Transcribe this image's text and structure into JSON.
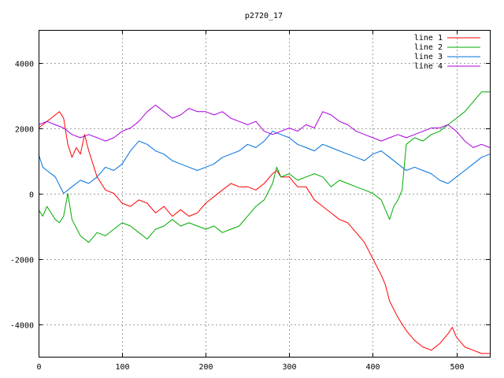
{
  "chart_data": {
    "type": "line",
    "title": "p2720_17",
    "xlabel": "",
    "ylabel": "",
    "xlim": [
      0,
      540
    ],
    "ylim": [
      -5000,
      5000
    ],
    "x_ticks": [
      0,
      100,
      200,
      300,
      400,
      500
    ],
    "y_ticks": [
      -4000,
      -2000,
      0,
      2000,
      4000
    ],
    "grid": true,
    "legend_position": "top-right",
    "series": [
      {
        "name": "line 1",
        "color": "#ff0000",
        "points": [
          [
            0,
            2000
          ],
          [
            5,
            2100
          ],
          [
            10,
            2200
          ],
          [
            15,
            2300
          ],
          [
            20,
            2400
          ],
          [
            25,
            2500
          ],
          [
            30,
            2300
          ],
          [
            35,
            1500
          ],
          [
            40,
            1100
          ],
          [
            45,
            1400
          ],
          [
            50,
            1200
          ],
          [
            55,
            1800
          ],
          [
            60,
            1300
          ],
          [
            65,
            900
          ],
          [
            70,
            500
          ],
          [
            80,
            100
          ],
          [
            90,
            0
          ],
          [
            100,
            -300
          ],
          [
            110,
            -400
          ],
          [
            120,
            -200
          ],
          [
            130,
            -300
          ],
          [
            140,
            -600
          ],
          [
            150,
            -400
          ],
          [
            160,
            -700
          ],
          [
            170,
            -500
          ],
          [
            180,
            -700
          ],
          [
            190,
            -600
          ],
          [
            200,
            -300
          ],
          [
            210,
            -100
          ],
          [
            220,
            100
          ],
          [
            230,
            300
          ],
          [
            240,
            200
          ],
          [
            250,
            200
          ],
          [
            260,
            100
          ],
          [
            270,
            300
          ],
          [
            280,
            600
          ],
          [
            285,
            700
          ],
          [
            290,
            500
          ],
          [
            300,
            500
          ],
          [
            310,
            200
          ],
          [
            320,
            200
          ],
          [
            330,
            -200
          ],
          [
            340,
            -400
          ],
          [
            350,
            -600
          ],
          [
            360,
            -800
          ],
          [
            370,
            -900
          ],
          [
            380,
            -1200
          ],
          [
            390,
            -1500
          ],
          [
            400,
            -2000
          ],
          [
            410,
            -2500
          ],
          [
            415,
            -2800
          ],
          [
            420,
            -3300
          ],
          [
            430,
            -3800
          ],
          [
            440,
            -4200
          ],
          [
            450,
            -4500
          ],
          [
            460,
            -4700
          ],
          [
            470,
            -4800
          ],
          [
            480,
            -4600
          ],
          [
            490,
            -4300
          ],
          [
            495,
            -4100
          ],
          [
            500,
            -4400
          ],
          [
            510,
            -4700
          ],
          [
            520,
            -4800
          ],
          [
            530,
            -4900
          ],
          [
            540,
            -4900
          ]
        ]
      },
      {
        "name": "line 2",
        "color": "#00aa00",
        "points": [
          [
            0,
            -500
          ],
          [
            5,
            -700
          ],
          [
            10,
            -400
          ],
          [
            15,
            -600
          ],
          [
            20,
            -800
          ],
          [
            25,
            -900
          ],
          [
            30,
            -700
          ],
          [
            35,
            0
          ],
          [
            40,
            -800
          ],
          [
            50,
            -1300
          ],
          [
            60,
            -1500
          ],
          [
            70,
            -1200
          ],
          [
            80,
            -1300
          ],
          [
            90,
            -1100
          ],
          [
            100,
            -900
          ],
          [
            110,
            -1000
          ],
          [
            120,
            -1200
          ],
          [
            130,
            -1400
          ],
          [
            140,
            -1100
          ],
          [
            150,
            -1000
          ],
          [
            160,
            -800
          ],
          [
            170,
            -1000
          ],
          [
            180,
            -900
          ],
          [
            190,
            -1000
          ],
          [
            200,
            -1100
          ],
          [
            210,
            -1000
          ],
          [
            220,
            -1200
          ],
          [
            230,
            -1100
          ],
          [
            240,
            -1000
          ],
          [
            250,
            -700
          ],
          [
            260,
            -400
          ],
          [
            270,
            -200
          ],
          [
            280,
            300
          ],
          [
            285,
            800
          ],
          [
            290,
            500
          ],
          [
            300,
            600
          ],
          [
            310,
            400
          ],
          [
            320,
            500
          ],
          [
            330,
            600
          ],
          [
            340,
            500
          ],
          [
            350,
            200
          ],
          [
            360,
            400
          ],
          [
            370,
            300
          ],
          [
            380,
            200
          ],
          [
            390,
            100
          ],
          [
            400,
            0
          ],
          [
            410,
            -200
          ],
          [
            415,
            -500
          ],
          [
            420,
            -800
          ],
          [
            425,
            -400
          ],
          [
            430,
            -200
          ],
          [
            435,
            100
          ],
          [
            440,
            1500
          ],
          [
            450,
            1700
          ],
          [
            460,
            1600
          ],
          [
            470,
            1800
          ],
          [
            480,
            1900
          ],
          [
            490,
            2100
          ],
          [
            500,
            2300
          ],
          [
            510,
            2500
          ],
          [
            520,
            2800
          ],
          [
            530,
            3100
          ],
          [
            540,
            3100
          ]
        ]
      },
      {
        "name": "line 3",
        "color": "#0070dd",
        "points": [
          [
            0,
            1200
          ],
          [
            5,
            800
          ],
          [
            10,
            700
          ],
          [
            20,
            500
          ],
          [
            30,
            0
          ],
          [
            40,
            200
          ],
          [
            50,
            400
          ],
          [
            60,
            300
          ],
          [
            70,
            500
          ],
          [
            80,
            800
          ],
          [
            90,
            700
          ],
          [
            100,
            900
          ],
          [
            110,
            1300
          ],
          [
            120,
            1600
          ],
          [
            130,
            1500
          ],
          [
            140,
            1300
          ],
          [
            150,
            1200
          ],
          [
            160,
            1000
          ],
          [
            170,
            900
          ],
          [
            180,
            800
          ],
          [
            190,
            700
          ],
          [
            200,
            800
          ],
          [
            210,
            900
          ],
          [
            220,
            1100
          ],
          [
            230,
            1200
          ],
          [
            240,
            1300
          ],
          [
            250,
            1500
          ],
          [
            260,
            1400
          ],
          [
            270,
            1600
          ],
          [
            280,
            1900
          ],
          [
            290,
            1800
          ],
          [
            300,
            1700
          ],
          [
            310,
            1500
          ],
          [
            320,
            1400
          ],
          [
            330,
            1300
          ],
          [
            340,
            1500
          ],
          [
            350,
            1400
          ],
          [
            360,
            1300
          ],
          [
            370,
            1200
          ],
          [
            380,
            1100
          ],
          [
            390,
            1000
          ],
          [
            400,
            1200
          ],
          [
            410,
            1300
          ],
          [
            420,
            1100
          ],
          [
            430,
            900
          ],
          [
            440,
            700
          ],
          [
            450,
            800
          ],
          [
            460,
            700
          ],
          [
            470,
            600
          ],
          [
            480,
            400
          ],
          [
            490,
            300
          ],
          [
            500,
            500
          ],
          [
            510,
            700
          ],
          [
            520,
            900
          ],
          [
            530,
            1100
          ],
          [
            540,
            1200
          ]
        ]
      },
      {
        "name": "line 4",
        "color": "#aa00dd",
        "points": [
          [
            0,
            2100
          ],
          [
            10,
            2200
          ],
          [
            20,
            2100
          ],
          [
            30,
            2000
          ],
          [
            40,
            1800
          ],
          [
            50,
            1700
          ],
          [
            60,
            1800
          ],
          [
            70,
            1700
          ],
          [
            80,
            1600
          ],
          [
            90,
            1700
          ],
          [
            100,
            1900
          ],
          [
            110,
            2000
          ],
          [
            120,
            2200
          ],
          [
            130,
            2500
          ],
          [
            140,
            2700
          ],
          [
            150,
            2500
          ],
          [
            160,
            2300
          ],
          [
            170,
            2400
          ],
          [
            180,
            2600
          ],
          [
            190,
            2500
          ],
          [
            200,
            2500
          ],
          [
            210,
            2400
          ],
          [
            220,
            2500
          ],
          [
            230,
            2300
          ],
          [
            240,
            2200
          ],
          [
            250,
            2100
          ],
          [
            260,
            2200
          ],
          [
            270,
            1900
          ],
          [
            280,
            1800
          ],
          [
            290,
            1900
          ],
          [
            300,
            2000
          ],
          [
            310,
            1900
          ],
          [
            320,
            2100
          ],
          [
            330,
            2000
          ],
          [
            340,
            2500
          ],
          [
            350,
            2400
          ],
          [
            360,
            2200
          ],
          [
            370,
            2100
          ],
          [
            380,
            1900
          ],
          [
            390,
            1800
          ],
          [
            400,
            1700
          ],
          [
            410,
            1600
          ],
          [
            420,
            1700
          ],
          [
            430,
            1800
          ],
          [
            440,
            1700
          ],
          [
            450,
            1800
          ],
          [
            460,
            1900
          ],
          [
            470,
            2000
          ],
          [
            480,
            2000
          ],
          [
            490,
            2100
          ],
          [
            500,
            1900
          ],
          [
            510,
            1600
          ],
          [
            520,
            1400
          ],
          [
            530,
            1500
          ],
          [
            540,
            1400
          ]
        ]
      }
    ]
  }
}
